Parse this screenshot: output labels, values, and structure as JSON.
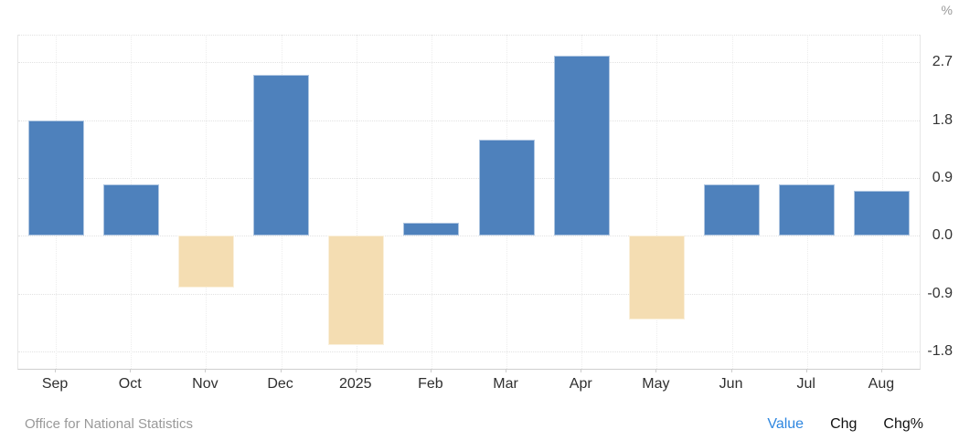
{
  "chart_data": {
    "type": "bar",
    "title": "",
    "unit_label": "%",
    "categories": [
      "Sep",
      "Oct",
      "Nov",
      "Dec",
      "2025",
      "Feb",
      "Mar",
      "Apr",
      "May",
      "Jun",
      "Jul",
      "Aug"
    ],
    "values": [
      1.8,
      0.8,
      -0.8,
      2.5,
      -1.7,
      0.2,
      1.5,
      2.8,
      -1.3,
      0.8,
      0.8,
      0.7
    ],
    "yticks": [
      "2.7",
      "1.8",
      "0.9",
      "0.0",
      "-0.9",
      "-1.8"
    ],
    "ytick_values": [
      2.7,
      1.8,
      0.9,
      0.0,
      -0.9,
      -1.8
    ],
    "ylim": [
      -2.07,
      3.13
    ],
    "grid": true,
    "legend_position": "none",
    "bar_colors": {
      "positive": "#4e81bc",
      "negative": "#f4ddb2"
    }
  },
  "footer": {
    "source": "Office for National Statistics",
    "links": [
      {
        "label": "Value",
        "active": true
      },
      {
        "label": "Chg",
        "active": false
      },
      {
        "label": "Chg%",
        "active": false
      }
    ]
  },
  "colors": {
    "accent_link": "#2f87e0",
    "axis_text": "#333333",
    "muted_text": "#999999"
  }
}
